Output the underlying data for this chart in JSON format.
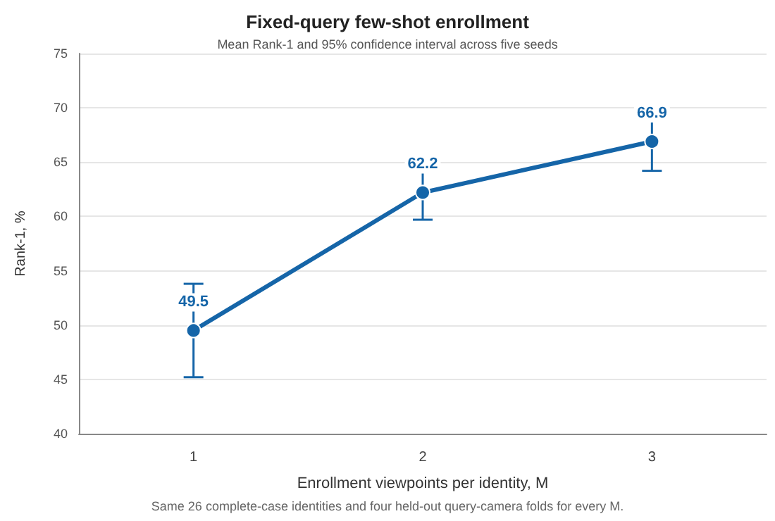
{
  "chart_data": {
    "type": "line",
    "title": "Fixed-query few-shot enrollment",
    "subtitle": "Mean Rank-1 and 95% confidence interval across five seeds",
    "xlabel": "Enrollment viewpoints per identity, M",
    "ylabel": "Rank-1, %",
    "annotations": [
      "Same 26 complete-case identities and four held-out query-camera folds for every M."
    ],
    "categories": [
      "1",
      "2",
      "3"
    ],
    "series": [
      {
        "color": "#1565a8",
        "values": [
          49.5,
          62.2,
          66.9
        ],
        "errors": [
          [
            45.2,
            53.8
          ],
          [
            59.7,
            64.7
          ],
          [
            64.2,
            69.6
          ]
        ]
      }
    ],
    "ylim": [
      40,
      75
    ],
    "yticks": [
      40,
      45,
      50,
      55,
      60,
      65,
      70,
      75
    ],
    "grid": "y",
    "marker": "circle",
    "line_style": "solid",
    "data_labels": true
  }
}
